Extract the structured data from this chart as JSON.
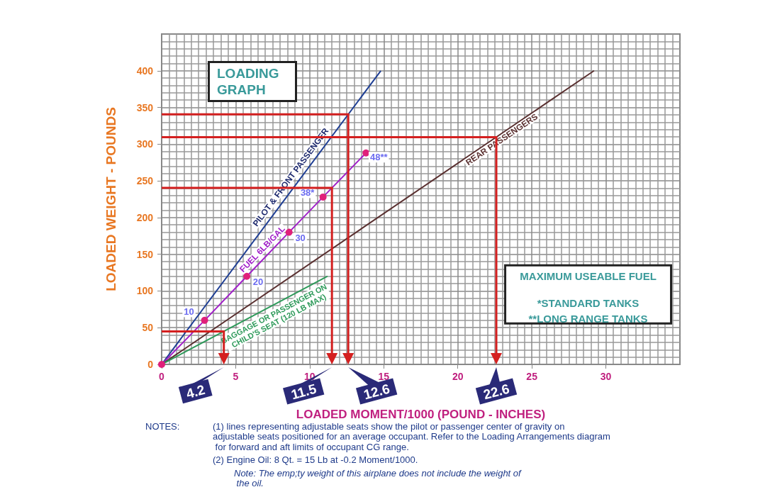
{
  "chart_data": {
    "type": "line",
    "title": "LOADING GRAPH",
    "xlabel": "LOADED MOMENT/1000 (POUND - INCHES)",
    "ylabel": "LOADED WEIGHT - POUNDS",
    "xlim": [
      0,
      35
    ],
    "xticks": [
      0,
      5,
      10,
      15,
      20,
      25,
      30
    ],
    "ylim": [
      0,
      450
    ],
    "yticks": [
      0,
      50,
      100,
      150,
      200,
      250,
      300,
      350,
      400
    ],
    "grid": true,
    "legend": false,
    "line_style": "solid",
    "series": [
      {
        "name": "PILOT & FRONT PASSENGER",
        "color": "#1f3f94",
        "x": [
          0,
          14.8
        ],
        "values": [
          0,
          400
        ]
      },
      {
        "name": "FUEL 6LB/GAL",
        "color": "#a020c8",
        "x": [
          0,
          2.9,
          5.75,
          8.6,
          10.9,
          13.8
        ],
        "values": [
          0,
          60,
          120,
          180,
          228,
          288
        ],
        "marker": "circle",
        "colors": [
          "#e0207a",
          "#e0207a",
          "#e0207a",
          "#e0207a",
          "#e0207a",
          "#e0207a"
        ]
      },
      {
        "name": "REAR PASSENGERS",
        "color": "#5a3030",
        "x": [
          0,
          29.2
        ],
        "values": [
          0,
          400
        ]
      },
      {
        "name": "BAGGAGE OR PASSENGER ON CHILD'S SEAT (120 LB MAX)",
        "color": "#2e9a5a",
        "x": [
          0,
          11.2
        ],
        "values": [
          0,
          120
        ]
      }
    ],
    "annotations": [
      "MAXIMUM USEABLE FUEL",
      "*STANDARD TANKS",
      "**LONG RANGE TANKS",
      "NOTES:",
      "(1) lines representing adjustable seats show the pilot or passenger center of gravity on adjustable seats positioned for an average occupant. Refer to the Loading Arrangements diagram for forward and aft limits of occupant CG range.",
      "(2) Engine Oil: 8 Qt. = 15 Lb at -0.2 Moment/1000.",
      "Note: The emp;ty weight of this airplane does not include the weight of the oil.",
      {
        "text": "10",
        "x": 2.9,
        "y": 60
      },
      {
        "text": "20",
        "x": 5.75,
        "y": 120
      },
      {
        "text": "30",
        "x": 8.6,
        "y": 180
      },
      {
        "text": "38*",
        "x": 10.9,
        "y": 228
      },
      {
        "text": "48**",
        "x": 13.8,
        "y": 288
      },
      "4.2",
      "11.5",
      "12.6",
      "22.6"
    ]
  }
}
